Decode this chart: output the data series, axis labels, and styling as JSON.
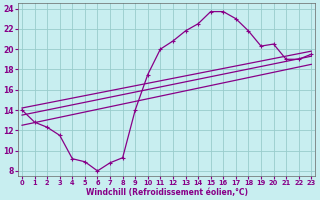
{
  "xlabel": "Windchill (Refroidissement éolien,°C)",
  "bg_color": "#c8eef0",
  "grid_color": "#99cccc",
  "line_color": "#880088",
  "x_ticks": [
    0,
    1,
    2,
    3,
    4,
    5,
    6,
    7,
    8,
    9,
    10,
    11,
    12,
    13,
    14,
    15,
    16,
    17,
    18,
    19,
    20,
    21,
    22,
    23
  ],
  "y_ticks": [
    8,
    10,
    12,
    14,
    16,
    18,
    20,
    22,
    24
  ],
  "xlim": [
    -0.3,
    23.3
  ],
  "ylim": [
    7.5,
    24.5
  ],
  "curve1_x": [
    0,
    1,
    2,
    3,
    4,
    5,
    6,
    7,
    8,
    9,
    10,
    11,
    12,
    13,
    14,
    15,
    16,
    17,
    18,
    19,
    20,
    21,
    22,
    23
  ],
  "curve1_y": [
    14.0,
    12.8,
    12.3,
    11.5,
    9.2,
    8.9,
    8.0,
    8.8,
    9.3,
    14.0,
    17.5,
    20.0,
    20.8,
    21.8,
    22.5,
    23.7,
    23.7,
    23.0,
    21.8,
    20.3,
    20.5,
    19.0,
    19.0,
    19.5
  ],
  "line1_x": [
    0,
    23
  ],
  "line1_y": [
    13.5,
    19.3
  ],
  "line2_x": [
    0,
    23
  ],
  "line2_y": [
    14.2,
    19.8
  ],
  "line3_x": [
    0,
    23
  ],
  "line3_y": [
    12.5,
    18.5
  ],
  "marker_style": "+",
  "marker_size": 3,
  "linewidth": 0.9
}
